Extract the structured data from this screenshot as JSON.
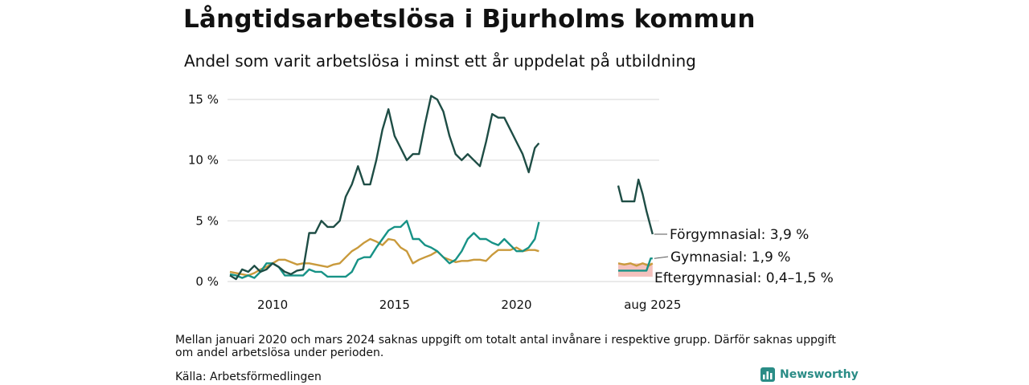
{
  "header": {
    "title": "Långtidsarbetslösa i Bjurholms kommun",
    "subtitle": "Andel som varit arbetslösa i minst ett år uppdelat på utbildning"
  },
  "footer": {
    "note": "Mellan januari 2020 och mars 2024 saknas uppgift om totalt antal invånare i respektive grupp. Därför saknas uppgift om andel arbetslösa under perioden.",
    "source": "Källa: Arbetsförmedlingen",
    "brand": "Newsworthy"
  },
  "colors": {
    "forgymnasial": "#1e4d45",
    "gymnasial": "#179286",
    "eftergymnasial": "#c99a3c",
    "eftergymnasial_band": "#f2b6b2",
    "grid": "#dddddd",
    "brand": "#2a8c86"
  },
  "icons": {
    "brand": "newsworthy-logo-icon"
  },
  "chart_data": {
    "type": "line",
    "y_ticks": [
      "0 %",
      "5 %",
      "10 %",
      "15 %"
    ],
    "y_tick_values": [
      0,
      5,
      10,
      15
    ],
    "ylim": [
      0,
      15.5
    ],
    "x_ticks": [
      "2010",
      "2015",
      "2020",
      "aug 2025"
    ],
    "x_tick_values": [
      2010.0,
      2015.0,
      2020.0,
      2025.58
    ],
    "grid": "horizontal",
    "series": [
      {
        "key": "forgymnasial",
        "end_label": "Förgymnasial: 3,9 %",
        "segments": [
          {
            "x": [
              2008.25,
              2008.5,
              2008.75,
              2009.0,
              2009.25,
              2009.5,
              2009.75,
              2010.0,
              2010.25,
              2010.5,
              2010.75,
              2011.0,
              2011.25,
              2011.5,
              2011.75,
              2012.0,
              2012.25,
              2012.5,
              2012.75,
              2013.0,
              2013.25,
              2013.5,
              2013.75,
              2014.0,
              2014.25,
              2014.5,
              2014.75,
              2015.0,
              2015.25,
              2015.5,
              2015.75,
              2016.0,
              2016.25,
              2016.5,
              2016.75,
              2017.0,
              2017.25,
              2017.5,
              2017.75,
              2018.0,
              2018.25,
              2018.5,
              2018.75,
              2019.0,
              2019.25,
              2019.5,
              2019.75,
              2020.0,
              2020.25,
              2020.5,
              2020.75,
              2020.92
            ],
            "y": [
              0.5,
              0.2,
              1.0,
              0.8,
              1.3,
              0.8,
              1.0,
              1.5,
              1.2,
              0.8,
              0.6,
              0.9,
              1.0,
              4.0,
              4.0,
              5.0,
              4.5,
              4.5,
              5.0,
              7.0,
              8.0,
              9.5,
              8.0,
              8.0,
              10.0,
              12.5,
              14.2,
              12.0,
              11.0,
              10.0,
              10.5,
              10.5,
              13.0,
              15.3,
              15.0,
              14.0,
              12.0,
              10.5,
              10.0,
              10.5,
              10.0,
              9.5,
              11.5,
              13.8,
              13.5,
              13.5,
              12.5,
              11.5,
              10.5,
              9.0,
              11.0,
              11.4
            ]
          },
          {
            "x": [
              2024.17,
              2024.33,
              2024.58,
              2024.83,
              2025.0,
              2025.17,
              2025.33,
              2025.5,
              2025.58
            ],
            "y": [
              7.9,
              6.6,
              6.6,
              6.6,
              8.4,
              7.2,
              5.8,
              4.5,
              3.9
            ]
          }
        ]
      },
      {
        "key": "gymnasial",
        "end_label": "Gymnasial: 1,9 %",
        "segments": [
          {
            "x": [
              2008.25,
              2008.5,
              2008.75,
              2009.0,
              2009.25,
              2009.5,
              2009.75,
              2010.0,
              2010.25,
              2010.5,
              2010.75,
              2011.0,
              2011.25,
              2011.5,
              2011.75,
              2012.0,
              2012.25,
              2012.5,
              2012.75,
              2013.0,
              2013.25,
              2013.5,
              2013.75,
              2014.0,
              2014.25,
              2014.5,
              2014.75,
              2015.0,
              2015.25,
              2015.5,
              2015.75,
              2016.0,
              2016.25,
              2016.5,
              2016.75,
              2017.0,
              2017.25,
              2017.5,
              2017.75,
              2018.0,
              2018.25,
              2018.5,
              2018.75,
              2019.0,
              2019.25,
              2019.5,
              2019.75,
              2020.0,
              2020.25,
              2020.5,
              2020.75,
              2020.92
            ],
            "y": [
              0.6,
              0.5,
              0.3,
              0.5,
              0.3,
              0.8,
              1.5,
              1.5,
              1.2,
              0.5,
              0.5,
              0.5,
              0.5,
              1.0,
              0.8,
              0.8,
              0.4,
              0.4,
              0.4,
              0.4,
              0.8,
              1.8,
              2.0,
              2.0,
              2.8,
              3.5,
              4.2,
              4.5,
              4.5,
              5.0,
              3.5,
              3.5,
              3.0,
              2.8,
              2.5,
              2.0,
              1.5,
              1.8,
              2.5,
              3.5,
              4.0,
              3.5,
              3.5,
              3.2,
              3.0,
              3.5,
              3.0,
              2.5,
              2.5,
              2.8,
              3.5,
              4.9
            ]
          },
          {
            "x": [
              2024.17,
              2024.42,
              2024.67,
              2024.92,
              2025.17,
              2025.33,
              2025.5,
              2025.58
            ],
            "y": [
              0.9,
              0.9,
              0.9,
              0.9,
              0.9,
              0.9,
              1.9,
              1.9
            ]
          }
        ]
      },
      {
        "key": "eftergymnasial",
        "end_label": "Eftergymnasial: 0,4–1,5 %",
        "segments": [
          {
            "x": [
              2008.25,
              2008.5,
              2008.75,
              2009.0,
              2009.25,
              2009.5,
              2009.75,
              2010.0,
              2010.25,
              2010.5,
              2010.75,
              2011.0,
              2011.25,
              2011.5,
              2011.75,
              2012.0,
              2012.25,
              2012.5,
              2012.75,
              2013.0,
              2013.25,
              2013.5,
              2013.75,
              2014.0,
              2014.25,
              2014.5,
              2014.75,
              2015.0,
              2015.25,
              2015.5,
              2015.75,
              2016.0,
              2016.25,
              2016.5,
              2016.75,
              2017.0,
              2017.25,
              2017.5,
              2017.75,
              2018.0,
              2018.25,
              2018.5,
              2018.75,
              2019.0,
              2019.25,
              2019.5,
              2019.75,
              2020.0,
              2020.25,
              2020.5,
              2020.75,
              2020.92
            ],
            "y": [
              0.8,
              0.7,
              0.6,
              0.5,
              0.7,
              1.0,
              1.2,
              1.5,
              1.8,
              1.8,
              1.6,
              1.4,
              1.5,
              1.5,
              1.4,
              1.3,
              1.2,
              1.4,
              1.5,
              2.0,
              2.5,
              2.8,
              3.2,
              3.5,
              3.3,
              3.0,
              3.5,
              3.4,
              2.8,
              2.5,
              1.5,
              1.8,
              2.0,
              2.2,
              2.5,
              2.0,
              1.8,
              1.6,
              1.7,
              1.7,
              1.8,
              1.8,
              1.7,
              2.2,
              2.6,
              2.6,
              2.6,
              2.8,
              2.5,
              2.6,
              2.6,
              2.5
            ]
          },
          {
            "x": [
              2024.17,
              2024.42,
              2024.67,
              2024.92,
              2025.17,
              2025.42,
              2025.58
            ],
            "y": [
              1.5,
              1.4,
              1.5,
              1.3,
              1.5,
              1.3,
              1.5
            ]
          }
        ]
      }
    ],
    "band": {
      "key": "eftergymnasial_band",
      "x0": 2024.17,
      "x1": 2025.58,
      "y0": 0.4,
      "y1": 1.5
    }
  }
}
